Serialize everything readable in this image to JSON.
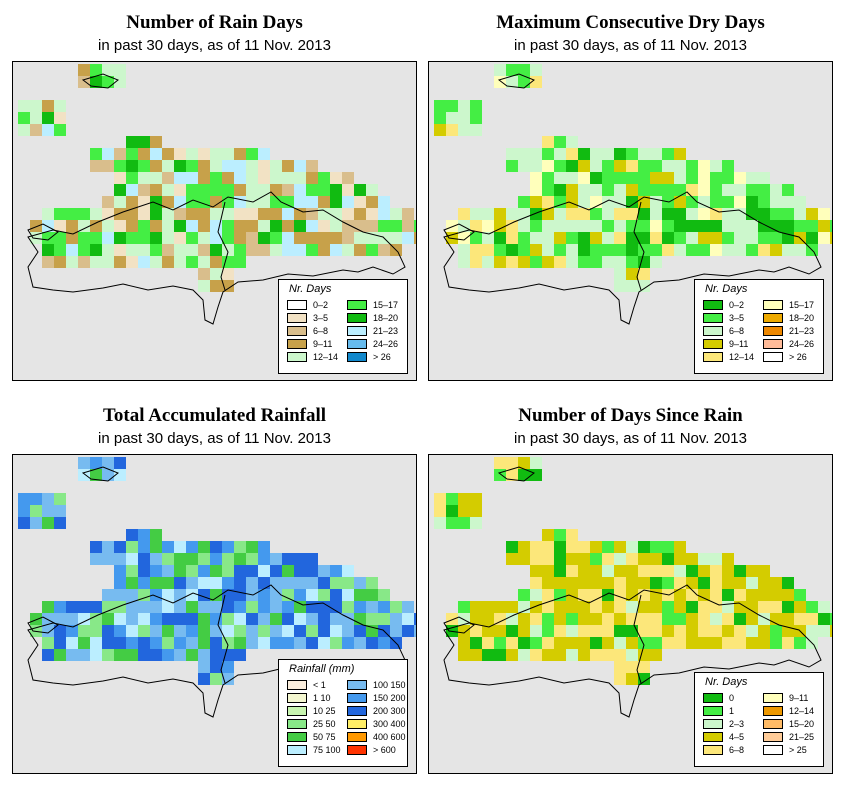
{
  "panels": [
    {
      "id": "rain-days",
      "title": "Number of Rain Days",
      "subtitle": "in past 30 days, as of  11 Nov. 2013",
      "legend_title": "Nr. Days",
      "legend_cols": 2,
      "legend": [
        {
          "label": "0–2",
          "color": "#ffffff"
        },
        {
          "label": "3–5",
          "color": "#f2e2c4"
        },
        {
          "label": "6–8",
          "color": "#d9be8c"
        },
        {
          "label": "9–11",
          "color": "#c7a14a"
        },
        {
          "label": "12–14",
          "color": "#ccf7cc"
        },
        {
          "label": "15–17",
          "color": "#44ee44"
        },
        {
          "label": "18–20",
          "color": "#11bb11"
        },
        {
          "label": "21–23",
          "color": "#bbeeff"
        },
        {
          "label": "24–26",
          "color": "#66bbee"
        },
        {
          "label": "> 26",
          "color": "#1188cc"
        }
      ],
      "palette": [
        "#c7a14a",
        "#c7a14a",
        "#d9be8c",
        "#f2e2c4",
        "#ccf7cc",
        "#ccf7cc",
        "#44ee44",
        "#44ee44",
        "#11bb11",
        "#bbeeff"
      ]
    },
    {
      "id": "dry-days",
      "title": "Maximum Consecutive Dry Days",
      "subtitle": "in past 30 days, as of  11 Nov. 2013",
      "legend_title": "Nr. Days",
      "legend_cols": 2,
      "legend": [
        {
          "label": "0–2",
          "color": "#11bb11"
        },
        {
          "label": "3–5",
          "color": "#44ee44"
        },
        {
          "label": "6–8",
          "color": "#ccf7cc"
        },
        {
          "label": "9–11",
          "color": "#d4cc00"
        },
        {
          "label": "12–14",
          "color": "#fce77a"
        },
        {
          "label": "15–17",
          "color": "#ffffbb"
        },
        {
          "label": "18–20",
          "color": "#eeaa00"
        },
        {
          "label": "21–23",
          "color": "#ee8800"
        },
        {
          "label": "24–26",
          "color": "#ffbb99"
        },
        {
          "label": "> 26",
          "color": "#ffffff"
        }
      ],
      "palette": [
        "#ccf7cc",
        "#ccf7cc",
        "#ccf7cc",
        "#44ee44",
        "#44ee44",
        "#44ee44",
        "#11bb11",
        "#fce77a",
        "#d4cc00",
        "#ffffbb"
      ]
    },
    {
      "id": "rainfall",
      "title": "Total Accumulated Rainfall",
      "subtitle": "in past 30 days, as of  11 Nov. 2013",
      "legend_title": "Rainfall (mm)",
      "legend_cols": 2,
      "legend": [
        {
          "label": "< 1",
          "color": "#fbeedd"
        },
        {
          "label": "1   10",
          "color": "#f4f7d0"
        },
        {
          "label": "10   25",
          "color": "#c8f5b0"
        },
        {
          "label": "25   50",
          "color": "#88e888"
        },
        {
          "label": "50   75",
          "color": "#44cc44"
        },
        {
          "label": "75   100",
          "color": "#bbeeff"
        },
        {
          "label": "100   150",
          "color": "#77bbf0"
        },
        {
          "label": "150   200",
          "color": "#4499ee"
        },
        {
          "label": "200   300",
          "color": "#2266dd"
        },
        {
          "label": "300   400",
          "color": "#ffee66"
        },
        {
          "label": "400   600",
          "color": "#ff9900"
        },
        {
          "label": "> 600",
          "color": "#ff3300"
        }
      ],
      "palette": [
        "#77bbf0",
        "#4499ee",
        "#4499ee",
        "#2266dd",
        "#2266dd",
        "#2266dd",
        "#bbeeff",
        "#88e888",
        "#44cc44",
        "#77bbf0"
      ]
    },
    {
      "id": "since-rain",
      "title": "Number of Days Since Rain",
      "subtitle": "in past 30 days, as of  11 Nov. 2013",
      "legend_title": "Nr. Days",
      "legend_cols": 2,
      "legend": [
        {
          "label": "0",
          "color": "#11bb11"
        },
        {
          "label": "1",
          "color": "#44ee44"
        },
        {
          "label": "2–3",
          "color": "#ccf7cc"
        },
        {
          "label": "4–5",
          "color": "#d4cc00"
        },
        {
          "label": "6–8",
          "color": "#fce77a"
        },
        {
          "label": "9–11",
          "color": "#ffffbb"
        },
        {
          "label": "12–14",
          "color": "#ee9900"
        },
        {
          "label": "15–20",
          "color": "#ffbb66"
        },
        {
          "label": "21–25",
          "color": "#ffcc99"
        },
        {
          "label": "> 25",
          "color": "#ffffff"
        }
      ],
      "palette": [
        "#d4cc00",
        "#d4cc00",
        "#d4cc00",
        "#fce77a",
        "#fce77a",
        "#ccf7cc",
        "#44ee44",
        "#11bb11",
        "#d4cc00",
        "#fce77a"
      ]
    }
  ]
}
